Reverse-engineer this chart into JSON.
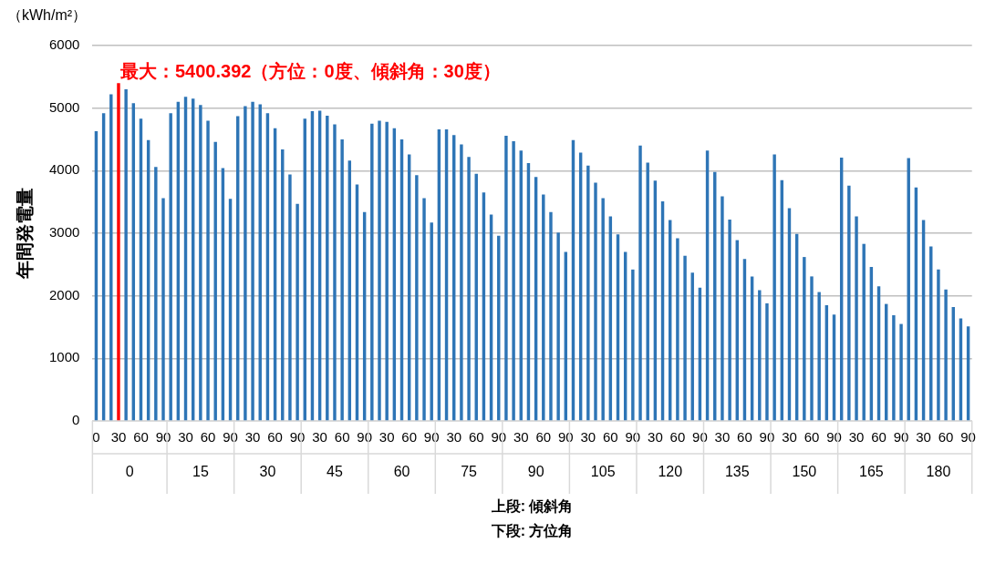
{
  "chart_data": {
    "type": "bar",
    "ylabel": "年間発電量",
    "xlabel": "上段: 傾斜角",
    "categories": [
      "0",
      null,
      null,
      "30",
      null,
      null,
      "60",
      null,
      null,
      "90",
      null,
      null,
      "30",
      null,
      null,
      "60",
      null,
      null,
      "90",
      null,
      null,
      "30",
      null,
      null,
      "60",
      null,
      null,
      "90",
      null,
      null,
      "30",
      null,
      null,
      "60",
      null,
      null,
      "90",
      null,
      null,
      "30",
      null,
      null,
      "60",
      null,
      null,
      "90",
      null,
      null,
      "30",
      null,
      null,
      "60",
      null,
      null,
      "90",
      null,
      null,
      "30",
      null,
      null,
      "60",
      null,
      null,
      "90",
      null,
      null,
      "30",
      null,
      null,
      "60",
      null,
      null,
      "90",
      null,
      null,
      "30",
      null,
      null,
      "60",
      null,
      null,
      "90",
      null,
      null,
      "30",
      null,
      null,
      "60",
      null,
      null,
      "90",
      null,
      null,
      "30",
      null,
      null,
      "60",
      null,
      null,
      "90",
      null,
      null,
      "30",
      null,
      null,
      "60",
      null,
      null,
      "90",
      null,
      null,
      "30",
      null,
      null,
      "60",
      null,
      null,
      "90"
    ],
    "values": [
      4630,
      4920,
      5220,
      5400.392,
      5300,
      5080,
      4830,
      4490,
      4060,
      3560,
      4920,
      5100,
      5180,
      5150,
      5050,
      4800,
      4460,
      4040,
      3550,
      4870,
      5030,
      5100,
      5060,
      4920,
      4680,
      4340,
      3940,
      3470,
      4830,
      4950,
      4960,
      4880,
      4740,
      4500,
      4160,
      3780,
      3340,
      4750,
      4800,
      4780,
      4680,
      4500,
      4260,
      3930,
      3560,
      3170,
      4660,
      4660,
      4570,
      4420,
      4220,
      3950,
      3650,
      3300,
      2960,
      4560,
      4470,
      4320,
      4120,
      3900,
      3620,
      3340,
      3010,
      2700,
      4490,
      4290,
      4080,
      3810,
      3560,
      3270,
      2980,
      2700,
      2420,
      4400,
      4130,
      3840,
      3510,
      3210,
      2920,
      2640,
      2370,
      2130,
      4320,
      3980,
      3590,
      3220,
      2890,
      2590,
      2310,
      2090,
      1880,
      4260,
      3850,
      3400,
      2990,
      2620,
      2310,
      2060,
      1850,
      1700,
      4210,
      3760,
      3270,
      2830,
      2460,
      2150,
      1870,
      1690,
      1550,
      4200,
      3730,
      3210,
      2790,
      2420,
      2100,
      1820,
      1640,
      1510
    ],
    "colors": [
      "#2e75b6",
      "#2e75b6",
      "#2e75b6",
      "#ff0000",
      "#2e75b6",
      "#2e75b6",
      "#2e75b6",
      "#2e75b6",
      "#2e75b6",
      "#2e75b6",
      "#2e75b6",
      "#2e75b6",
      "#2e75b6",
      "#2e75b6",
      "#2e75b6",
      "#2e75b6",
      "#2e75b6",
      "#2e75b6",
      "#2e75b6",
      "#2e75b6",
      "#2e75b6",
      "#2e75b6",
      "#2e75b6",
      "#2e75b6",
      "#2e75b6",
      "#2e75b6",
      "#2e75b6",
      "#2e75b6",
      "#2e75b6",
      "#2e75b6",
      "#2e75b6",
      "#2e75b6",
      "#2e75b6",
      "#2e75b6",
      "#2e75b6",
      "#2e75b6",
      "#2e75b6",
      "#2e75b6",
      "#2e75b6",
      "#2e75b6",
      "#2e75b6",
      "#2e75b6",
      "#2e75b6",
      "#2e75b6",
      "#2e75b6",
      "#2e75b6",
      "#2e75b6",
      "#2e75b6",
      "#2e75b6",
      "#2e75b6",
      "#2e75b6",
      "#2e75b6",
      "#2e75b6",
      "#2e75b6",
      "#2e75b6",
      "#2e75b6",
      "#2e75b6",
      "#2e75b6",
      "#2e75b6",
      "#2e75b6",
      "#2e75b6",
      "#2e75b6",
      "#2e75b6",
      "#2e75b6",
      "#2e75b6",
      "#2e75b6",
      "#2e75b6",
      "#2e75b6",
      "#2e75b6",
      "#2e75b6",
      "#2e75b6",
      "#2e75b6",
      "#2e75b6",
      "#2e75b6",
      "#2e75b6",
      "#2e75b6",
      "#2e75b6",
      "#2e75b6",
      "#2e75b6",
      "#2e75b6",
      "#2e75b6",
      "#2e75b6",
      "#2e75b6",
      "#2e75b6",
      "#2e75b6",
      "#2e75b6",
      "#2e75b6",
      "#2e75b6",
      "#2e75b6",
      "#2e75b6",
      "#2e75b6",
      "#2e75b6",
      "#2e75b6",
      "#2e75b6",
      "#2e75b6",
      "#2e75b6",
      "#2e75b6",
      "#2e75b6",
      "#2e75b6",
      "#2e75b6",
      "#2e75b6",
      "#2e75b6",
      "#2e75b6",
      "#2e75b6",
      "#2e75b6",
      "#2e75b6",
      "#2e75b6",
      "#2e75b6",
      "#2e75b6",
      "#2e75b6",
      "#2e75b6",
      "#2e75b6",
      "#2e75b6",
      "#2e75b6",
      "#2e75b6",
      "#2e75b6",
      "#2e75b6",
      "#2e75b6"
    ],
    "ylim": [
      0,
      6000
    ],
    "yticks": [
      0,
      1000,
      2000,
      3000,
      4000,
      5000,
      6000
    ],
    "grid": "y",
    "legend": false,
    "annotations": [
      "最大：5400.392（方位：0度、傾斜角：30度）",
      "（kWh/m²）",
      "下段: 方位角",
      "0",
      "15",
      "30",
      "45",
      "60",
      "75",
      "90",
      "105",
      "120",
      "135",
      "150",
      "165",
      "180"
    ]
  }
}
